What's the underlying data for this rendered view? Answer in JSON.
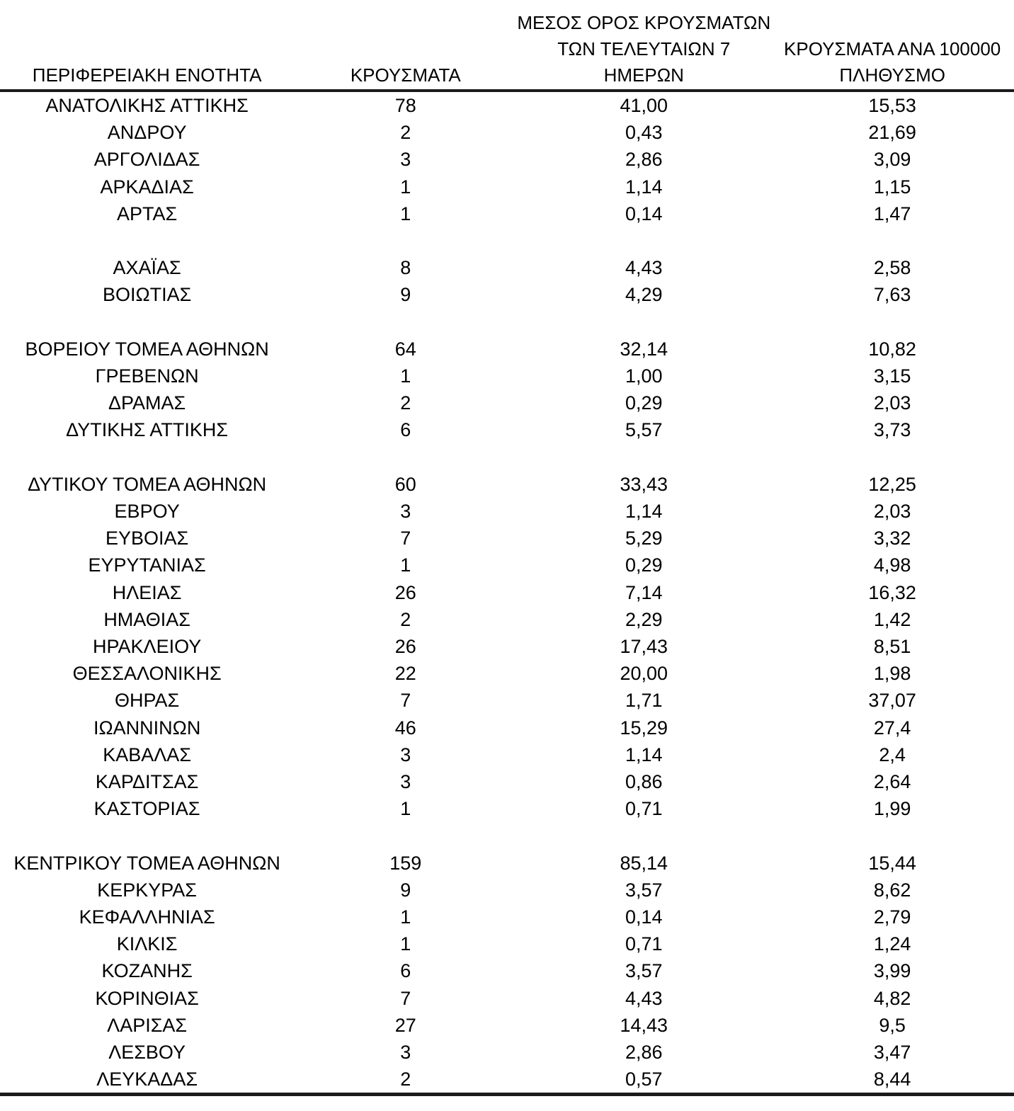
{
  "table": {
    "header": {
      "col_region": "ΠΕΡΙΦΕΡΕΙΑΚΗ ΕΝΟΤΗΤΑ",
      "col_cases": "ΚΡΟΥΣΜΑΤΑ",
      "col_avg7_line1": "ΜΕΣΟΣ ΟΡΟΣ ΚΡΟΥΣΜΑΤΩΝ",
      "col_avg7_line2": "ΤΩΝ ΤΕΛΕΥΤΑΙΩΝ 7",
      "col_avg7_line3": "ΗΜΕΡΩΝ",
      "col_per100k_line1": "ΚΡΟΥΣΜΑΤΑ ΑΝΑ 100000",
      "col_per100k_line2": "ΠΛΗΘΥΣΜΟ"
    },
    "rows": [
      {
        "region": "ΑΝΑΤΟΛΙΚΗΣ ΑΤΤΙΚΗΣ",
        "cases": "78",
        "avg_7day": "41,00",
        "per_100k": "15,53"
      },
      {
        "region": "ΑΝΔΡΟΥ",
        "cases": "2",
        "avg_7day": "0,43",
        "per_100k": "21,69"
      },
      {
        "region": "ΑΡΓΟΛΙΔΑΣ",
        "cases": "3",
        "avg_7day": "2,86",
        "per_100k": "3,09"
      },
      {
        "region": "ΑΡΚΑΔΙΑΣ",
        "cases": "1",
        "avg_7day": "1,14",
        "per_100k": "1,15"
      },
      {
        "region": "ΑΡΤΑΣ",
        "cases": "1",
        "avg_7day": "0,14",
        "per_100k": "1,47"
      },
      {
        "blank": true,
        "region": "",
        "cases": "",
        "avg_7day": "",
        "per_100k": ""
      },
      {
        "region": "ΑΧΑΪΑΣ",
        "cases": "8",
        "avg_7day": "4,43",
        "per_100k": "2,58"
      },
      {
        "region": "ΒΟΙΩΤΙΑΣ",
        "cases": "9",
        "avg_7day": "4,29",
        "per_100k": "7,63"
      },
      {
        "blank": true,
        "region": "",
        "cases": "",
        "avg_7day": "",
        "per_100k": ""
      },
      {
        "region": "ΒΟΡΕΙΟΥ ΤΟΜΕΑ ΑΘΗΝΩΝ",
        "cases": "64",
        "avg_7day": "32,14",
        "per_100k": "10,82"
      },
      {
        "region": "ΓΡΕΒΕΝΩΝ",
        "cases": "1",
        "avg_7day": "1,00",
        "per_100k": "3,15"
      },
      {
        "region": "ΔΡΑΜΑΣ",
        "cases": "2",
        "avg_7day": "0,29",
        "per_100k": "2,03"
      },
      {
        "region": "ΔΥΤΙΚΗΣ ΑΤΤΙΚΗΣ",
        "cases": "6",
        "avg_7day": "5,57",
        "per_100k": "3,73"
      },
      {
        "blank": true,
        "region": "",
        "cases": "",
        "avg_7day": "",
        "per_100k": ""
      },
      {
        "region": "ΔΥΤΙΚΟΥ ΤΟΜΕΑ ΑΘΗΝΩΝ",
        "cases": "60",
        "avg_7day": "33,43",
        "per_100k": "12,25"
      },
      {
        "region": "ΕΒΡΟΥ",
        "cases": "3",
        "avg_7day": "1,14",
        "per_100k": "2,03"
      },
      {
        "region": "ΕΥΒΟΙΑΣ",
        "cases": "7",
        "avg_7day": "5,29",
        "per_100k": "3,32"
      },
      {
        "region": "ΕΥΡΥΤΑΝΙΑΣ",
        "cases": "1",
        "avg_7day": "0,29",
        "per_100k": "4,98"
      },
      {
        "region": "ΗΛΕΙΑΣ",
        "cases": "26",
        "avg_7day": "7,14",
        "per_100k": "16,32"
      },
      {
        "region": "ΗΜΑΘΙΑΣ",
        "cases": "2",
        "avg_7day": "2,29",
        "per_100k": "1,42"
      },
      {
        "region": "ΗΡΑΚΛΕΙΟΥ",
        "cases": "26",
        "avg_7day": "17,43",
        "per_100k": "8,51"
      },
      {
        "region": "ΘΕΣΣΑΛΟΝΙΚΗΣ",
        "cases": "22",
        "avg_7day": "20,00",
        "per_100k": "1,98"
      },
      {
        "region": "ΘΗΡΑΣ",
        "cases": "7",
        "avg_7day": "1,71",
        "per_100k": "37,07"
      },
      {
        "region": "ΙΩΑΝΝΙΝΩΝ",
        "cases": "46",
        "avg_7day": "15,29",
        "per_100k": "27,4"
      },
      {
        "region": "ΚΑΒΑΛΑΣ",
        "cases": "3",
        "avg_7day": "1,14",
        "per_100k": "2,4"
      },
      {
        "region": "ΚΑΡΔΙΤΣΑΣ",
        "cases": "3",
        "avg_7day": "0,86",
        "per_100k": "2,64"
      },
      {
        "region": "ΚΑΣΤΟΡΙΑΣ",
        "cases": "1",
        "avg_7day": "0,71",
        "per_100k": "1,99"
      },
      {
        "blank": true,
        "region": "",
        "cases": "",
        "avg_7day": "",
        "per_100k": ""
      },
      {
        "region": "ΚΕΝΤΡΙΚΟΥ ΤΟΜΕΑ ΑΘΗΝΩΝ",
        "cases": "159",
        "avg_7day": "85,14",
        "per_100k": "15,44"
      },
      {
        "region": "ΚΕΡΚΥΡΑΣ",
        "cases": "9",
        "avg_7day": "3,57",
        "per_100k": "8,62"
      },
      {
        "region": "ΚΕΦΑΛΛΗΝΙΑΣ",
        "cases": "1",
        "avg_7day": "0,14",
        "per_100k": "2,79"
      },
      {
        "region": "ΚΙΛΚΙΣ",
        "cases": "1",
        "avg_7day": "0,71",
        "per_100k": "1,24"
      },
      {
        "region": "ΚΟΖΑΝΗΣ",
        "cases": "6",
        "avg_7day": "3,57",
        "per_100k": "3,99"
      },
      {
        "region": "ΚΟΡΙΝΘΙΑΣ",
        "cases": "7",
        "avg_7day": "4,43",
        "per_100k": "4,82"
      },
      {
        "region": "ΛΑΡΙΣΑΣ",
        "cases": "27",
        "avg_7day": "14,43",
        "per_100k": "9,5"
      },
      {
        "region": "ΛΕΣΒΟΥ",
        "cases": "3",
        "avg_7day": "2,86",
        "per_100k": "3,47"
      },
      {
        "region": "ΛΕΥΚΑΔΑΣ",
        "cases": "2",
        "avg_7day": "0,57",
        "per_100k": "8,44"
      }
    ]
  }
}
